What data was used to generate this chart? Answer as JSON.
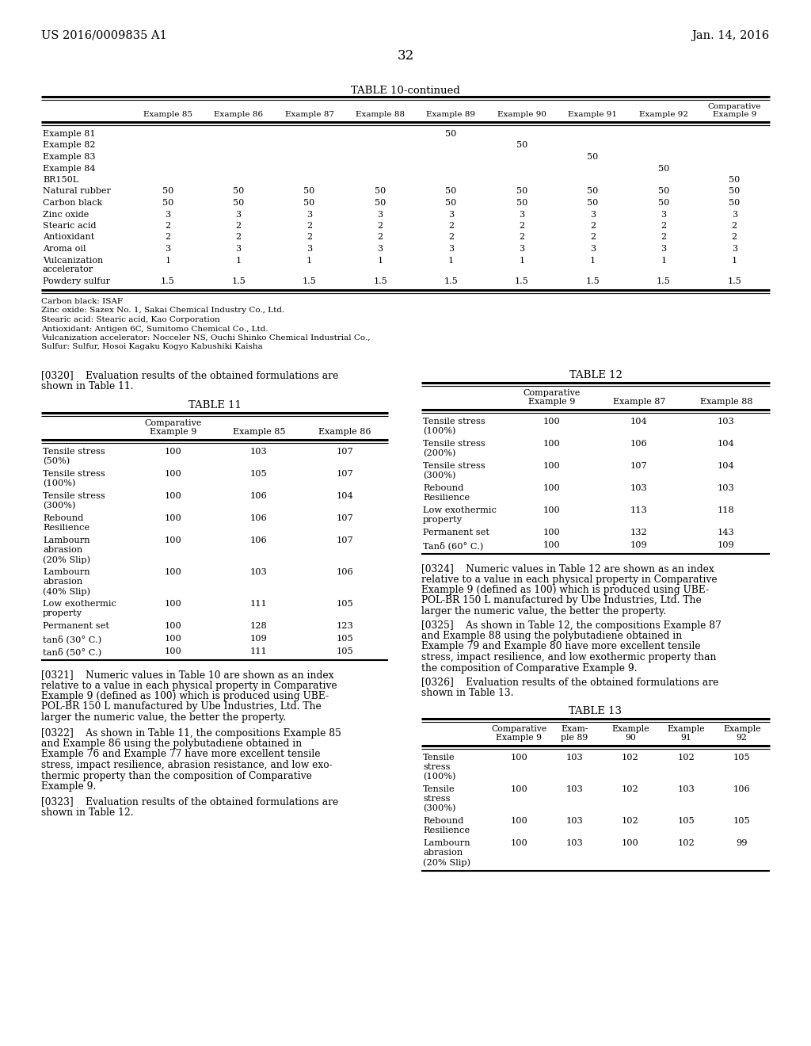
{
  "page_header_left": "US 2016/0009835 A1",
  "page_header_right": "Jan. 14, 2016",
  "page_number": "32",
  "table10_title": "TABLE 10-continued",
  "table10_columns": [
    "",
    "Example 85",
    "Example 86",
    "Example 87",
    "Example 88",
    "Example 89",
    "Example 90",
    "Example 91",
    "Example 92",
    "Comparative\nExample 9"
  ],
  "table10_rows": [
    [
      "Example 81",
      "",
      "",
      "",
      "",
      "50",
      "",
      "",
      "",
      ""
    ],
    [
      "Example 82",
      "",
      "",
      "",
      "",
      "",
      "50",
      "",
      "",
      ""
    ],
    [
      "Example 83",
      "",
      "",
      "",
      "",
      "",
      "",
      "50",
      "",
      ""
    ],
    [
      "Example 84",
      "",
      "",
      "",
      "",
      "",
      "",
      "",
      "50",
      ""
    ],
    [
      "BR150L",
      "",
      "",
      "",
      "",
      "",
      "",
      "",
      "",
      "50"
    ],
    [
      "Natural rubber",
      "50",
      "50",
      "50",
      "50",
      "50",
      "50",
      "50",
      "50",
      "50"
    ],
    [
      "Carbon black",
      "50",
      "50",
      "50",
      "50",
      "50",
      "50",
      "50",
      "50",
      "50"
    ],
    [
      "Zinc oxide",
      "3",
      "3",
      "3",
      "3",
      "3",
      "3",
      "3",
      "3",
      "3"
    ],
    [
      "Stearic acid",
      "2",
      "2",
      "2",
      "2",
      "2",
      "2",
      "2",
      "2",
      "2"
    ],
    [
      "Antioxidant",
      "2",
      "2",
      "2",
      "2",
      "2",
      "2",
      "2",
      "2",
      "2"
    ],
    [
      "Aroma oil",
      "3",
      "3",
      "3",
      "3",
      "3",
      "3",
      "3",
      "3",
      "3"
    ],
    [
      "Vulcanization\naccelerator",
      "1",
      "1",
      "1",
      "1",
      "1",
      "1",
      "1",
      "1",
      "1"
    ],
    [
      "Powdery sulfur",
      "1.5",
      "1.5",
      "1.5",
      "1.5",
      "1.5",
      "1.5",
      "1.5",
      "1.5",
      "1.5"
    ]
  ],
  "table10_footnotes": [
    "Carbon black: ISAF",
    "Zinc oxide: Sazex No. 1, Sakai Chemical Industry Co., Ltd.",
    "Stearic acid: Stearic acid, Kao Corporation",
    "Antioxidant: Antigen 6C, Sumitomo Chemical Co., Ltd.",
    "Vulcanization accelerator: Nocceler NS, Ouchi Shinko Chemical Industrial Co.,",
    "Sulfur: Sulfur, Hosoi Kagaku Kogyo Kabushiki Kaisha"
  ],
  "table11_title": "TABLE 11",
  "table11_rows": [
    [
      "Tensile stress\n(50%)",
      "100",
      "103",
      "107"
    ],
    [
      "Tensile stress\n(100%)",
      "100",
      "105",
      "107"
    ],
    [
      "Tensile stress\n(300%)",
      "100",
      "106",
      "104"
    ],
    [
      "Rebound\nResilience",
      "100",
      "106",
      "107"
    ],
    [
      "Lambourn\nabrasion\n(20% Slip)",
      "100",
      "106",
      "107"
    ],
    [
      "Lambourn\nabrasion\n(40% Slip)",
      "100",
      "103",
      "106"
    ],
    [
      "Low exothermic\nproperty",
      "100",
      "111",
      "105"
    ],
    [
      "Permanent set",
      "100",
      "128",
      "123"
    ],
    [
      "tanδ (30° C.)",
      "100",
      "109",
      "105"
    ],
    [
      "tanδ (50° C.)",
      "100",
      "111",
      "105"
    ]
  ],
  "table12_title": "TABLE 12",
  "table12_rows": [
    [
      "Tensile stress\n(100%)",
      "100",
      "104",
      "103"
    ],
    [
      "Tensile stress\n(200%)",
      "100",
      "106",
      "104"
    ],
    [
      "Tensile stress\n(300%)",
      "100",
      "107",
      "104"
    ],
    [
      "Rebound\nResilience",
      "100",
      "103",
      "103"
    ],
    [
      "Low exothermic\nproperty",
      "100",
      "113",
      "118"
    ],
    [
      "Permanent set",
      "100",
      "132",
      "143"
    ],
    [
      "Tanδ (60° C.)",
      "100",
      "109",
      "109"
    ]
  ],
  "table13_title": "TABLE 13",
  "table13_rows": [
    [
      "Tensile\nstress\n(100%)",
      "100",
      "103",
      "102",
      "102",
      "105"
    ],
    [
      "Tensile\nstress\n(300%)",
      "100",
      "103",
      "102",
      "103",
      "106"
    ],
    [
      "Rebound\nResilience",
      "100",
      "103",
      "102",
      "105",
      "105"
    ],
    [
      "Lambourn\nabrasion\n(20% Slip)",
      "100",
      "103",
      "100",
      "102",
      "99"
    ]
  ],
  "para320_lines": [
    "[0320]    Evaluation results of the obtained formulations are",
    "shown in Table 11."
  ],
  "para321_lines": [
    "[0321]    Numeric values in Table 10 are shown as an index",
    "relative to a value in each physical property in Comparative",
    "Example 9 (defined as 100) which is produced using UBE-",
    "POL-BR 150 L manufactured by Ube Industries, Ltd. The",
    "larger the numeric value, the better the property."
  ],
  "para322_lines": [
    "[0322]    As shown in Table 11, the compositions Example 85",
    "and Example 86 using the polybutadiene obtained in",
    "Example 76 and Example 77 have more excellent tensile",
    "stress, impact resilience, abrasion resistance, and low exo-",
    "thermic property than the composition of Comparative",
    "Example 9."
  ],
  "para323_lines": [
    "[0323]    Evaluation results of the obtained formulations are",
    "shown in Table 12."
  ],
  "para324_lines": [
    "[0324]    Numeric values in Table 12 are shown as an index",
    "relative to a value in each physical property in Comparative",
    "Example 9 (defined as 100) which is produced using UBE-",
    "POL-BR 150 L manufactured by Ube Industries, Ltd. The",
    "larger the numeric value, the better the property."
  ],
  "para325_lines": [
    "[0325]    As shown in Table 12, the compositions Example 87",
    "and Example 88 using the polybutadiene obtained in",
    "Example 79 and Example 80 have more excellent tensile",
    "stress, impact resilience, and low exothermic property than",
    "the composition of Comparative Example 9."
  ],
  "para326_lines": [
    "[0326]    Evaluation results of the obtained formulations are",
    "shown in Table 13."
  ]
}
